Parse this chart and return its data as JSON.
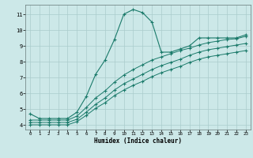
{
  "xlabel": "Humidex (Indice chaleur)",
  "background_color": "#cce8e8",
  "grid_color": "#aacccc",
  "line_color": "#1a7a6a",
  "xlim": [
    -0.5,
    23.5
  ],
  "ylim": [
    3.7,
    11.6
  ],
  "xticks": [
    0,
    1,
    2,
    3,
    4,
    5,
    6,
    7,
    8,
    9,
    10,
    11,
    12,
    13,
    14,
    15,
    16,
    17,
    18,
    19,
    20,
    21,
    22,
    23
  ],
  "yticks": [
    4,
    5,
    6,
    7,
    8,
    9,
    10,
    11
  ],
  "series": [
    {
      "x": [
        0,
        1,
        2,
        3,
        4,
        5,
        6,
        7,
        8,
        9,
        10,
        11,
        12,
        13,
        14,
        15,
        16,
        17,
        18,
        19,
        20,
        21,
        22,
        23
      ],
      "y": [
        4.7,
        4.4,
        4.4,
        4.4,
        4.4,
        4.8,
        5.8,
        7.2,
        8.1,
        9.4,
        11.0,
        11.3,
        11.1,
        10.5,
        8.6,
        8.6,
        8.8,
        9.0,
        9.5,
        9.5,
        9.5,
        9.5,
        9.5,
        9.7
      ]
    },
    {
      "x": [
        0,
        1,
        2,
        3,
        4,
        5,
        6,
        7,
        8,
        9,
        10,
        11,
        12,
        13,
        14,
        15,
        16,
        17,
        18,
        19,
        20,
        21,
        22,
        23
      ],
      "y": [
        4.3,
        4.3,
        4.3,
        4.3,
        4.3,
        4.55,
        5.1,
        5.7,
        6.15,
        6.7,
        7.15,
        7.5,
        7.8,
        8.1,
        8.3,
        8.5,
        8.7,
        8.85,
        9.05,
        9.2,
        9.3,
        9.4,
        9.45,
        9.6
      ]
    },
    {
      "x": [
        0,
        1,
        2,
        3,
        4,
        5,
        6,
        7,
        8,
        9,
        10,
        11,
        12,
        13,
        14,
        15,
        16,
        17,
        18,
        19,
        20,
        21,
        22,
        23
      ],
      "y": [
        4.15,
        4.15,
        4.15,
        4.15,
        4.15,
        4.35,
        4.8,
        5.3,
        5.7,
        6.2,
        6.6,
        6.9,
        7.2,
        7.5,
        7.75,
        7.95,
        8.15,
        8.4,
        8.6,
        8.75,
        8.85,
        8.95,
        9.05,
        9.15
      ]
    },
    {
      "x": [
        0,
        1,
        2,
        3,
        4,
        5,
        6,
        7,
        8,
        9,
        10,
        11,
        12,
        13,
        14,
        15,
        16,
        17,
        18,
        19,
        20,
        21,
        22,
        23
      ],
      "y": [
        4.0,
        4.0,
        4.0,
        4.0,
        4.0,
        4.2,
        4.6,
        5.05,
        5.4,
        5.85,
        6.2,
        6.5,
        6.75,
        7.05,
        7.3,
        7.5,
        7.7,
        7.95,
        8.15,
        8.3,
        8.4,
        8.5,
        8.6,
        8.7
      ]
    }
  ]
}
